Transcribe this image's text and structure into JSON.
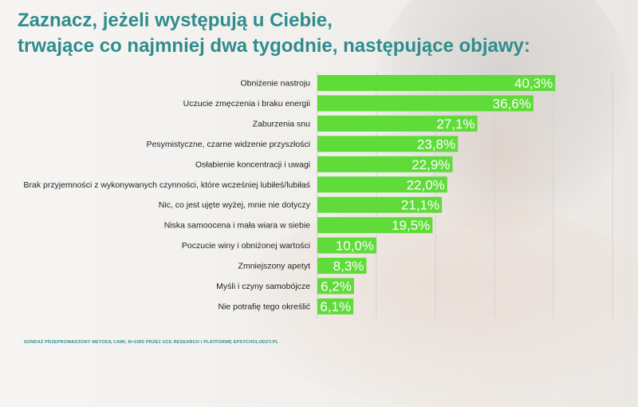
{
  "title": {
    "line1": "Zaznacz, jeżeli występują u Ciebie,",
    "line2": "trwające co najmniej dwa tygodnie, następujące objawy:"
  },
  "colors": {
    "bar": "#5fdb3a",
    "title": "#2f8d8c",
    "grid": "#cfcfcf"
  },
  "chart_data": {
    "type": "bar",
    "orientation": "horizontal",
    "categories": [
      "Obniżenie nastroju",
      "Uczucie zmęczenia i braku energii",
      "Zaburzenia snu",
      "Pesymistyczne, czarne widzenie przyszłości",
      "Osłabienie koncentracji i uwagi",
      "Brak przyjemności z wykonywanych czynności, które wcześniej lubiłeś/lubiłaś",
      "Nic, co jest ujęte wyżej, mnie nie dotyczy",
      "Niska samoocena i mała wiara w siebie",
      "Poczucie winy i obniżonej wartości",
      "Zmniejszony apetyt",
      "Myśli i czyny samobójcze",
      "Nie potrafię tego określić"
    ],
    "values": [
      40.3,
      36.6,
      27.1,
      23.8,
      22.9,
      22.0,
      21.1,
      19.5,
      10.0,
      8.3,
      6.2,
      6.1
    ],
    "value_labels": [
      "40,3%",
      "36,6%",
      "27,1%",
      "23,8%",
      "22,9%",
      "22,0%",
      "21,1%",
      "19,5%",
      "10,0%",
      "8,3%",
      "6,2%",
      "6,1%"
    ],
    "xlim": [
      0,
      50
    ],
    "grid": true,
    "legend": "none"
  },
  "footnote": "SONDAŻ PRZEPROWADZONY METODĄ CAWI, N=1065 PRZEZ UCE RESEARCH I PLATFORMĘ EPSYCHOLODZY.PL"
}
